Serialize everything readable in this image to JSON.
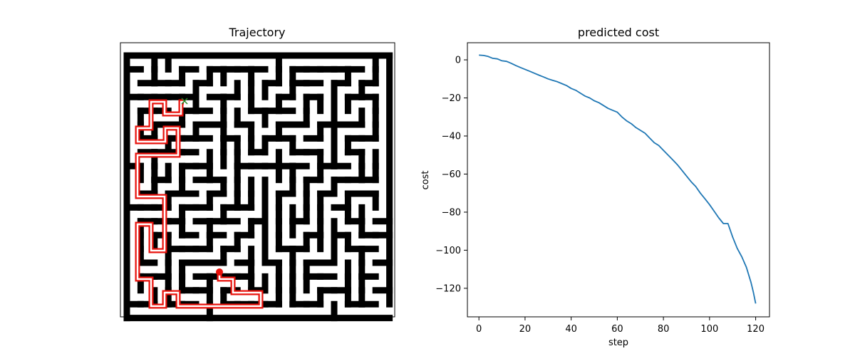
{
  "chart_data": [
    {
      "type": "image",
      "title": "Trajectory",
      "maze_cells": 19,
      "colors": {
        "wall": "#000000",
        "floor": "#ffffff",
        "path": "#e8120c",
        "agent": "#e8120c",
        "goal_marker": "#2a8a2a"
      },
      "markers": {
        "goal": "x",
        "agent": "circle"
      }
    },
    {
      "type": "line",
      "title": "predicted cost",
      "xlabel": "step",
      "ylabel": "cost",
      "xlim": [
        -5,
        126
      ],
      "ylim": [
        -135,
        9
      ],
      "xticks": [
        0,
        20,
        40,
        60,
        80,
        100,
        120
      ],
      "yticks": [
        0,
        -20,
        -40,
        -60,
        -80,
        -100,
        -120
      ],
      "series": [
        {
          "color": "#1f77b4",
          "x": [
            0,
            2,
            4,
            6,
            8,
            10,
            12,
            14,
            16,
            18,
            20,
            22,
            24,
            26,
            28,
            30,
            32,
            34,
            36,
            38,
            40,
            42,
            44,
            46,
            48,
            50,
            52,
            54,
            56,
            58,
            60,
            62,
            64,
            66,
            68,
            70,
            72,
            74,
            76,
            78,
            80,
            82,
            84,
            86,
            88,
            90,
            92,
            94,
            96,
            98,
            100,
            102,
            104,
            106,
            108,
            110,
            112,
            114,
            116,
            118,
            119,
            120
          ],
          "values": [
            2.5,
            2.3,
            1.8,
            0.8,
            0.5,
            -0.5,
            -0.8,
            -1.8,
            -3.0,
            -4.0,
            -5.0,
            -6.0,
            -7.0,
            -8.0,
            -9.0,
            -10.0,
            -10.8,
            -11.5,
            -12.5,
            -13.5,
            -15.0,
            -16.0,
            -17.5,
            -19.0,
            -20.0,
            -21.5,
            -22.5,
            -24.0,
            -25.5,
            -26.5,
            -27.5,
            -30.0,
            -32.0,
            -33.5,
            -35.5,
            -37.0,
            -38.5,
            -41.0,
            -43.5,
            -45.0,
            -47.5,
            -50.0,
            -52.5,
            -55.0,
            -58.0,
            -61.0,
            -64.0,
            -66.5,
            -70.0,
            -73.0,
            -76.0,
            -79.5,
            -83.0,
            -86.0,
            -86.0,
            -93.0,
            -99.0,
            -103.5,
            -109.0,
            -117.0,
            -122.0,
            -128.0
          ]
        }
      ]
    }
  ]
}
